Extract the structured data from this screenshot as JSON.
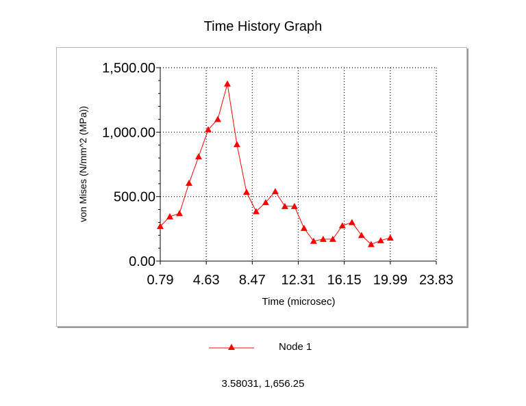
{
  "readout": "3.58031, 1,656.25",
  "chart_data": {
    "type": "line",
    "title": "Time History Graph",
    "xlabel": "Time (microsec)",
    "ylabel": "von Mises (N/mm^2 (MPa))",
    "xlim": [
      0.79,
      23.83
    ],
    "ylim": [
      0,
      1500
    ],
    "x_ticks": [
      "0.79",
      "4.63",
      "8.47",
      "12.31",
      "16.15",
      "19.99",
      "23.83"
    ],
    "x_tick_values": [
      0.79,
      4.63,
      8.47,
      12.31,
      16.15,
      19.99,
      23.83
    ],
    "y_ticks": [
      "0.00",
      "500.00",
      "1,000.00",
      "1,500.00"
    ],
    "y_tick_values": [
      0,
      500,
      1000,
      1500
    ],
    "grid": true,
    "legend_position": "bottom",
    "series": [
      {
        "name": "Node 1",
        "color": "#ff0000",
        "marker": "triangle",
        "x": [
          0.79,
          1.59,
          2.39,
          3.19,
          3.99,
          4.79,
          5.59,
          6.39,
          7.19,
          7.99,
          8.79,
          9.59,
          10.39,
          11.19,
          11.99,
          12.79,
          13.59,
          14.39,
          15.19,
          15.99,
          16.79,
          17.59,
          18.39,
          19.19,
          19.99
        ],
        "y": [
          270,
          345,
          370,
          605,
          810,
          1020,
          1100,
          1375,
          905,
          535,
          385,
          455,
          540,
          425,
          425,
          255,
          155,
          170,
          170,
          275,
          300,
          200,
          130,
          160,
          180
        ]
      }
    ]
  }
}
